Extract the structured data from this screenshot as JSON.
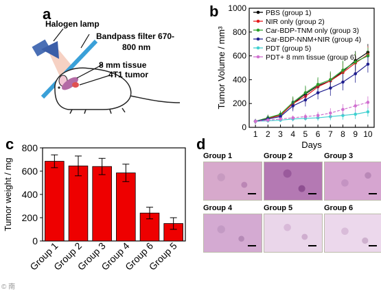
{
  "panels": {
    "a": {
      "letter": "a",
      "halogen_label": "Halogen lamp",
      "filter_label_line1": "Bandpass filter 670-",
      "filter_label_line2": "800 nm",
      "tissue_label": "8 mm tissue",
      "tumor_label": "4T1 tumor"
    },
    "b": {
      "letter": "b"
    },
    "c": {
      "letter": "c"
    },
    "d": {
      "letter": "d",
      "groups": [
        "Group 1",
        "Group 2",
        "Group 3",
        "Group 4",
        "Group 5",
        "Group 6"
      ]
    }
  },
  "colors": {
    "bar_fill": "#ee0000",
    "tissue_pink": "#d9a6c8",
    "tissue_purple": "#b07fb0"
  },
  "chart_data": [
    {
      "id": "b",
      "type": "line",
      "title": "",
      "xlabel": "Days",
      "ylabel": "Tumor Volume / mm³",
      "x": [
        1,
        2,
        3,
        4,
        5,
        6,
        7,
        8,
        9,
        10
      ],
      "xlim": [
        0.5,
        10.5
      ],
      "ylim": [
        0,
        1000
      ],
      "yticks": [
        0,
        200,
        400,
        600,
        800,
        1000
      ],
      "legend_position": "top-left",
      "series": [
        {
          "name": "PBS (group 1)",
          "color": "#000000",
          "marker": "square",
          "values": [
            50,
            80,
            100,
            200,
            280,
            350,
            390,
            470,
            560,
            630
          ],
          "errors": [
            20,
            25,
            30,
            50,
            60,
            60,
            70,
            80,
            80,
            70
          ]
        },
        {
          "name": "NIR only (group 2)",
          "color": "#e41a1c",
          "marker": "circle",
          "values": [
            50,
            75,
            100,
            200,
            260,
            340,
            390,
            460,
            540,
            610
          ],
          "errors": [
            20,
            25,
            30,
            50,
            60,
            60,
            70,
            80,
            80,
            70
          ]
        },
        {
          "name": "Car-BDP-TNM only (group 3)",
          "color": "#2ca02c",
          "marker": "triangle-up",
          "values": [
            50,
            80,
            110,
            210,
            290,
            360,
            400,
            480,
            550,
            600
          ],
          "errors": [
            20,
            25,
            30,
            50,
            60,
            60,
            70,
            80,
            80,
            70
          ]
        },
        {
          "name": "Car-BDP-NNM+NIR (group 4)",
          "color": "#1f1f8f",
          "marker": "triangle-down",
          "values": [
            50,
            70,
            90,
            180,
            230,
            290,
            330,
            380,
            450,
            530
          ],
          "errors": [
            20,
            25,
            30,
            45,
            55,
            55,
            65,
            70,
            75,
            70
          ]
        },
        {
          "name": "PDT (group 5)",
          "color": "#3fd0d0",
          "marker": "diamond",
          "values": [
            50,
            55,
            60,
            70,
            75,
            80,
            90,
            100,
            110,
            130
          ],
          "errors": [
            10,
            15,
            15,
            20,
            20,
            25,
            30,
            35,
            40,
            40
          ]
        },
        {
          "name": "PDT+ 8 mm tissue (group 6)",
          "color": "#d070d0",
          "marker": "triangle-left",
          "values": [
            50,
            60,
            70,
            80,
            90,
            100,
            120,
            150,
            180,
            210
          ],
          "errors": [
            10,
            15,
            15,
            20,
            25,
            30,
            40,
            45,
            50,
            50
          ]
        }
      ]
    },
    {
      "id": "c",
      "type": "bar",
      "title": "",
      "xlabel": "",
      "ylabel": "Tumor weight / mg",
      "categories": [
        "Group 1",
        "Group 2",
        "Group 3",
        "Group 4",
        "Group 6",
        "Group 5"
      ],
      "values": [
        685,
        645,
        640,
        585,
        240,
        150
      ],
      "errors": [
        55,
        85,
        70,
        75,
        50,
        50
      ],
      "ylim": [
        0,
        800
      ],
      "yticks": [
        0,
        200,
        400,
        600,
        800
      ]
    }
  ],
  "watermark": "© 南"
}
